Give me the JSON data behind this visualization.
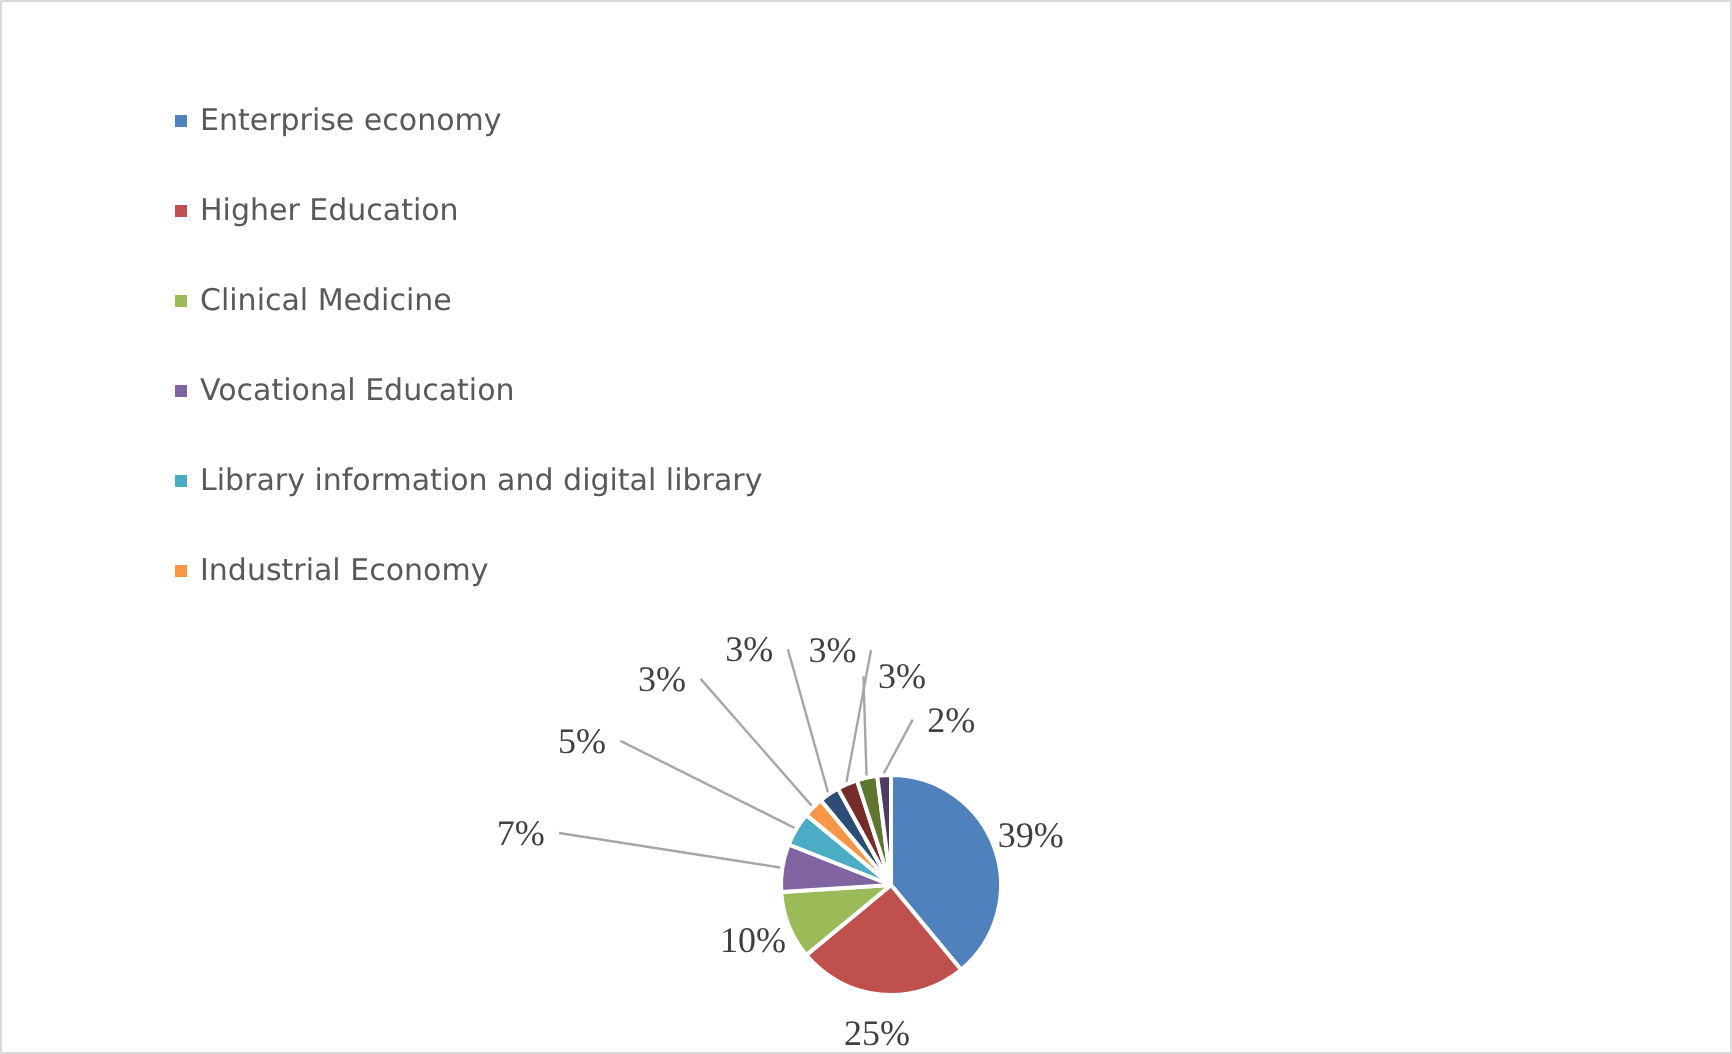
{
  "chart_data": {
    "type": "pie",
    "categories": [
      "Enterprise economy",
      "Higher Education",
      "Clinical Medicine",
      "Vocational Education",
      "Library information and digital library",
      "Industrial Economy",
      null,
      null,
      null,
      null
    ],
    "values": [
      39,
      25,
      10,
      7,
      5,
      3,
      3,
      3,
      3,
      2
    ],
    "value_labels": [
      "39%",
      "25%",
      "10%",
      "7%",
      "5%",
      "3%",
      "3%",
      "3%",
      "3%",
      "2%"
    ],
    "colors": [
      "#4f81bd",
      "#c0504d",
      "#9bbb59",
      "#8064a2",
      "#4bacc6",
      "#f79646",
      "#2c4d75",
      "#772c2a",
      "#5f7530",
      "#4d3b62"
    ],
    "legend": "top"
  }
}
